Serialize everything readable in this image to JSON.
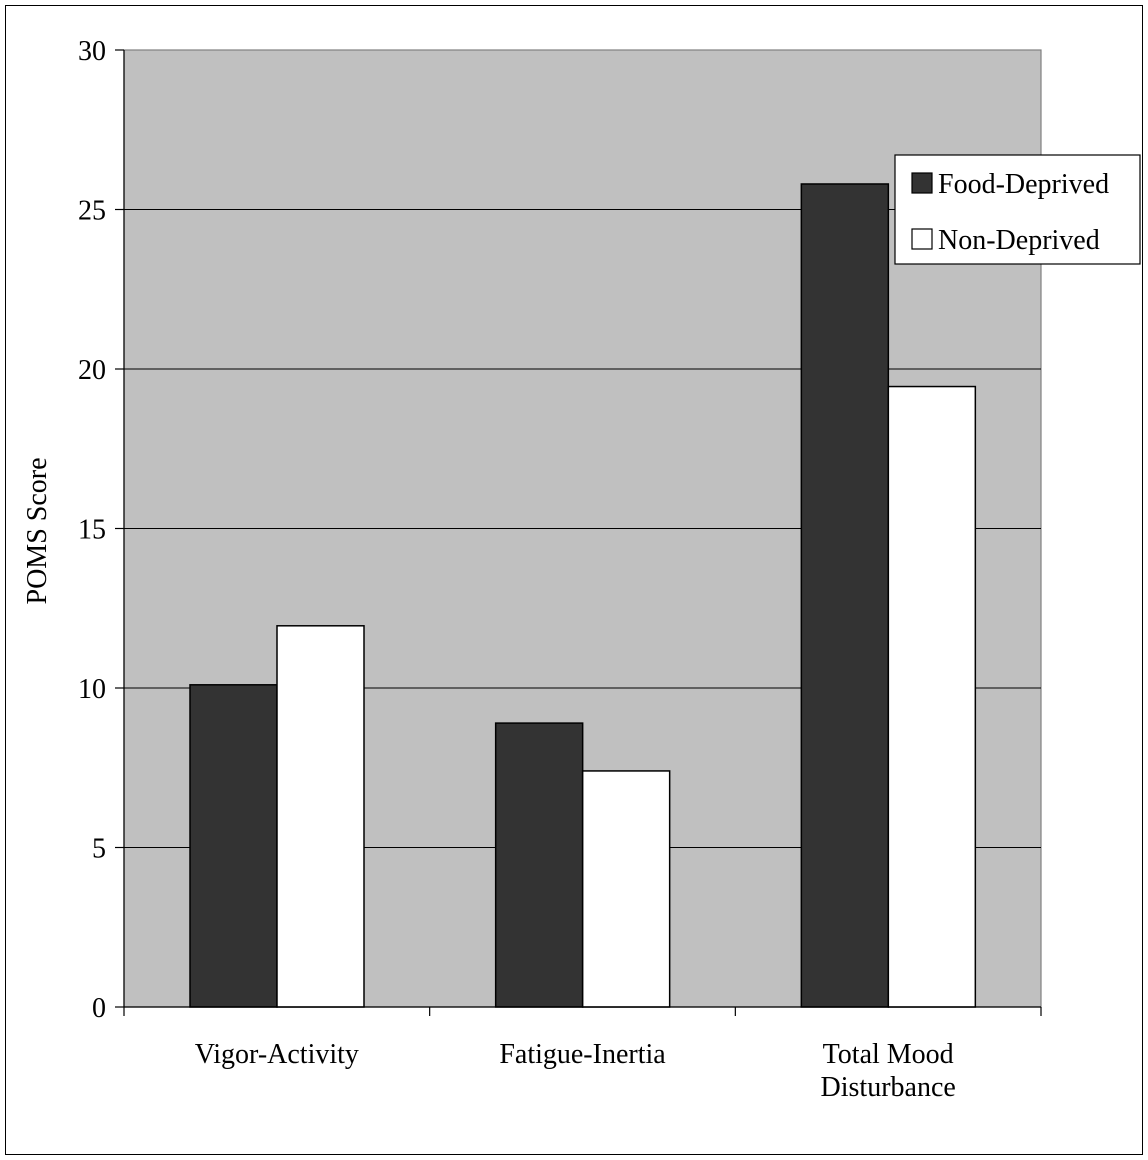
{
  "chart_data": {
    "type": "bar",
    "title": "",
    "xlabel": "",
    "ylabel": "POMS Score",
    "ylim": [
      0,
      30
    ],
    "yticks": [
      0,
      5,
      10,
      15,
      20,
      25,
      30
    ],
    "grid": true,
    "legend_position": "top-right",
    "categories": [
      [
        "Vigor-Activity"
      ],
      [
        "Fatigue-Inertia"
      ],
      [
        "Total Mood",
        "Disturbance"
      ]
    ],
    "series": [
      {
        "name": "Food-Deprived",
        "color": "#333333",
        "values": [
          10.1,
          8.9,
          25.8
        ]
      },
      {
        "name": "Non-Deprived",
        "color": "#ffffff",
        "values": [
          11.95,
          7.4,
          19.45
        ]
      }
    ],
    "plot_background": "#c0c0c0"
  }
}
